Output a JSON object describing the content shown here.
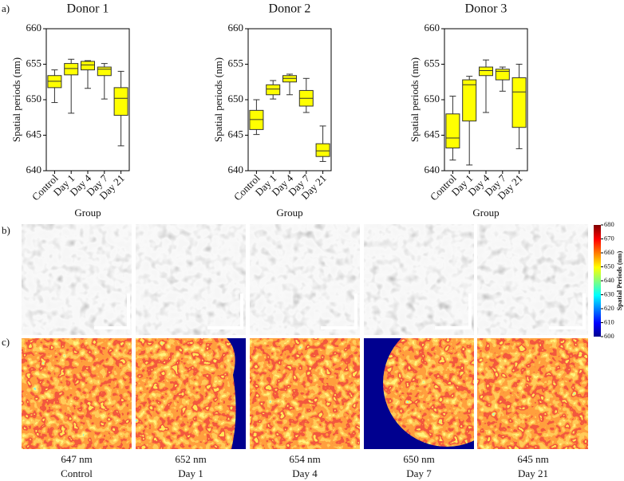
{
  "chart_data": [
    {
      "type": "box",
      "title": "Donor 1",
      "ylabel": "Spatial periods (nm)",
      "xlabel": "Group",
      "categories": [
        "Control",
        "Day 1",
        "Day 4",
        "Day 7",
        "Day 21"
      ],
      "color": "#ffff00",
      "boxes": [
        {
          "min": 649.6,
          "q1": 651.7,
          "median": 652.6,
          "q3": 653.4,
          "max": 654.2
        },
        {
          "min": 648.1,
          "q1": 653.5,
          "median": 654.4,
          "q3": 655.1,
          "max": 655.7
        },
        {
          "min": 651.6,
          "q1": 654.2,
          "median": 654.9,
          "q3": 655.4,
          "max": 655.5
        },
        {
          "min": 650.1,
          "q1": 653.4,
          "median": 654.3,
          "q3": 654.6,
          "max": 655.1
        },
        {
          "min": 643.5,
          "q1": 647.8,
          "median": 650.2,
          "q3": 651.7,
          "max": 654.0
        }
      ],
      "ylim": [
        640,
        660
      ],
      "yticks": [
        640,
        645,
        650,
        655,
        660
      ]
    },
    {
      "type": "box",
      "title": "Donor 2",
      "ylabel": "Spatial periods (nm)",
      "xlabel": "Group",
      "categories": [
        "Control",
        "Day 1",
        "Day 4",
        "Day 7",
        "Day 21"
      ],
      "color": "#ffff00",
      "boxes": [
        {
          "min": 645.1,
          "q1": 645.8,
          "median": 647.2,
          "q3": 648.5,
          "max": 650.0
        },
        {
          "min": 650.1,
          "q1": 650.7,
          "median": 651.5,
          "q3": 652.1,
          "max": 652.7
        },
        {
          "min": 650.7,
          "q1": 652.5,
          "median": 653.0,
          "q3": 653.4,
          "max": 653.6
        },
        {
          "min": 648.2,
          "q1": 649.1,
          "median": 650.2,
          "q3": 651.3,
          "max": 653.0
        },
        {
          "min": 641.3,
          "q1": 642.0,
          "median": 642.8,
          "q3": 643.8,
          "max": 646.3
        }
      ],
      "ylim": [
        640,
        660
      ],
      "yticks": [
        640,
        645,
        650,
        655,
        660
      ]
    },
    {
      "type": "box",
      "title": "Donor 3",
      "ylabel": "Spatial periods (nm)",
      "xlabel": "Group",
      "categories": [
        "Control",
        "Day 1",
        "Day 4",
        "Day 7",
        "Day 21"
      ],
      "color": "#ffff00",
      "boxes": [
        {
          "min": 641.5,
          "q1": 643.2,
          "median": 644.6,
          "q3": 648.0,
          "max": 650.5
        },
        {
          "min": 640.8,
          "q1": 647.0,
          "median": 652.1,
          "q3": 652.8,
          "max": 653.3
        },
        {
          "min": 648.2,
          "q1": 653.4,
          "median": 654.1,
          "q3": 654.6,
          "max": 655.6
        },
        {
          "min": 651.2,
          "q1": 652.8,
          "median": 654.0,
          "q3": 654.3,
          "max": 654.6
        },
        {
          "min": 643.1,
          "q1": 646.1,
          "median": 651.1,
          "q3": 653.1,
          "max": 655.0
        }
      ],
      "ylim": [
        640,
        660
      ],
      "yticks": [
        640,
        645,
        650,
        655,
        660
      ]
    }
  ],
  "panel_labels": [
    "a)",
    "b)",
    "c)"
  ],
  "colorbar": {
    "label": "Spatial Periods (nm)",
    "lim": [
      600,
      680
    ],
    "ticks": [
      600,
      610,
      620,
      630,
      640,
      650,
      660,
      670,
      680
    ]
  },
  "images": [
    {
      "period": "647 nm",
      "group": "Control"
    },
    {
      "period": "652 nm",
      "group": "Day 1"
    },
    {
      "period": "654 nm",
      "group": "Day 4"
    },
    {
      "period": "650 nm",
      "group": "Day 7"
    },
    {
      "period": "645 nm",
      "group": "Day 21"
    }
  ]
}
